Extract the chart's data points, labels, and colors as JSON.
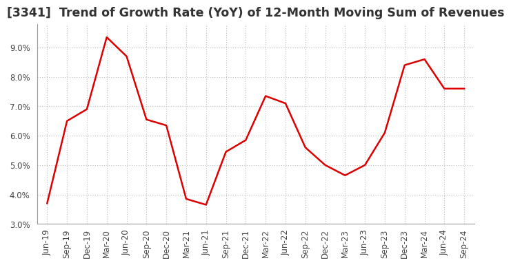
{
  "title": "[3341]  Trend of Growth Rate (YoY) of 12-Month Moving Sum of Revenues",
  "x_labels": [
    "Jun-19",
    "Sep-19",
    "Dec-19",
    "Mar-20",
    "Jun-20",
    "Sep-20",
    "Dec-20",
    "Mar-21",
    "Jun-21",
    "Sep-21",
    "Dec-21",
    "Mar-22",
    "Jun-22",
    "Sep-22",
    "Dec-22",
    "Mar-23",
    "Jun-23",
    "Sep-23",
    "Dec-23",
    "Mar-24",
    "Jun-24",
    "Sep-24"
  ],
  "y_values": [
    3.7,
    6.5,
    6.9,
    9.35,
    8.7,
    6.55,
    6.35,
    3.85,
    3.65,
    5.45,
    5.85,
    7.35,
    7.1,
    5.6,
    5.0,
    4.65,
    5.0,
    6.1,
    8.4,
    8.6,
    7.6,
    7.6
  ],
  "line_color": "#dd0000",
  "line_width": 1.8,
  "ylim": [
    3.0,
    9.8
  ],
  "yticks": [
    3.0,
    4.0,
    5.0,
    6.0,
    7.0,
    8.0,
    9.0
  ],
  "background_color": "#ffffff",
  "plot_bg_color": "#ffffff",
  "grid_color": "#bbbbbb",
  "title_fontsize": 12.5,
  "tick_fontsize": 8.5
}
